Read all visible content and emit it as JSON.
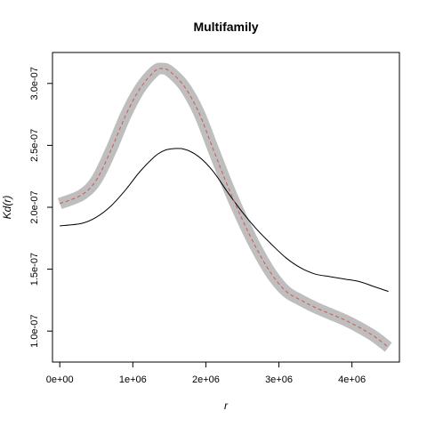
{
  "chart_data": {
    "type": "line",
    "title": "Multifamily",
    "xlabel": "r",
    "ylabel": "Kd(r)",
    "xlim": [
      -100000,
      4650000
    ],
    "ylim": [
      7.5e-08,
      3.25e-07
    ],
    "x_ticks": [
      {
        "value": 0,
        "label": "0e+00"
      },
      {
        "value": 1000000,
        "label": "1e+06"
      },
      {
        "value": 2000000,
        "label": "2e+06"
      },
      {
        "value": 3000000,
        "label": "3e+06"
      },
      {
        "value": 4000000,
        "label": "4e+06"
      }
    ],
    "y_ticks": [
      {
        "value": 1e-07,
        "label": "1.0e-07"
      },
      {
        "value": 1.5e-07,
        "label": "1.5e-07"
      },
      {
        "value": 2e-07,
        "label": "2.0e-07"
      },
      {
        "value": 2.5e-07,
        "label": "2.5e-07"
      },
      {
        "value": 3e-07,
        "label": "3.0e-07"
      }
    ],
    "grid": false,
    "legend": "none",
    "x": [
      0,
      300000,
      500000,
      700000,
      900000,
      1100000,
      1300000,
      1400000,
      1500000,
      1700000,
      1900000,
      2100000,
      2300000,
      2500000,
      2700000,
      2900000,
      3100000,
      3300000,
      3500000,
      3700000,
      3900000,
      4100000,
      4300000,
      4500000
    ],
    "series": [
      {
        "style": "solid",
        "color": "#000000",
        "values": [
          1.85e-07,
          1.87e-07,
          1.92e-07,
          2.01e-07,
          2.14e-07,
          2.29e-07,
          2.41e-07,
          2.45e-07,
          2.47e-07,
          2.47e-07,
          2.41e-07,
          2.29e-07,
          2.12e-07,
          1.96e-07,
          1.82e-07,
          1.7e-07,
          1.59e-07,
          1.51e-07,
          1.46e-07,
          1.44e-07,
          1.42e-07,
          1.4e-07,
          1.36e-07,
          1.32e-07
        ]
      },
      {
        "style": "dashed",
        "color": "#d9534f",
        "values": [
          2.03e-07,
          2.1e-07,
          2.22e-07,
          2.46e-07,
          2.74e-07,
          2.96e-07,
          3.1e-07,
          3.12e-07,
          3.1e-07,
          2.98e-07,
          2.77e-07,
          2.47e-07,
          2.17e-07,
          1.9e-07,
          1.66e-07,
          1.46e-07,
          1.32e-07,
          1.25e-07,
          1.19e-07,
          1.14e-07,
          1.09e-07,
          1.03e-07,
          9.6e-08,
          8.7e-08
        ]
      }
    ],
    "band": {
      "color": "#bebebe",
      "half_width": 6e-09
    }
  }
}
